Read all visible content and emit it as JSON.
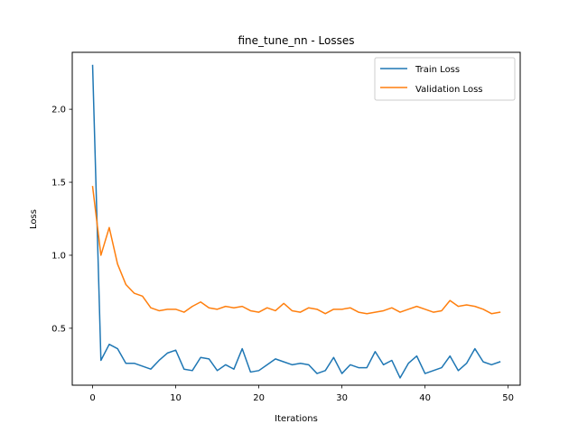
{
  "chart_data": {
    "type": "line",
    "title": "fine_tune_nn - Losses",
    "xlabel": "Iterations",
    "ylabel": "Loss",
    "xlim": [
      -2.45,
      51.45
    ],
    "ylim": [
      0.11,
      2.39
    ],
    "xticks": [
      0,
      10,
      20,
      30,
      40,
      50
    ],
    "yticks": [
      0.5,
      1.0,
      1.5,
      2.0
    ],
    "xtick_labels": [
      "0",
      "10",
      "20",
      "30",
      "40",
      "50"
    ],
    "ytick_labels": [
      "0.5",
      "1.0",
      "1.5",
      "2.0"
    ],
    "grid": false,
    "legend_position": "top-right",
    "x": [
      0,
      1,
      2,
      3,
      4,
      5,
      6,
      7,
      8,
      9,
      10,
      11,
      12,
      13,
      14,
      15,
      16,
      17,
      18,
      19,
      20,
      21,
      22,
      23,
      24,
      25,
      26,
      27,
      28,
      29,
      30,
      31,
      32,
      33,
      34,
      35,
      36,
      37,
      38,
      39,
      40,
      41,
      42,
      43,
      44,
      45,
      46,
      47,
      48,
      49
    ],
    "series": [
      {
        "name": "Train Loss",
        "color": "#1f77b4",
        "values": [
          2.3,
          0.28,
          0.39,
          0.36,
          0.26,
          0.26,
          0.24,
          0.22,
          0.28,
          0.33,
          0.35,
          0.22,
          0.21,
          0.3,
          0.29,
          0.21,
          0.25,
          0.22,
          0.36,
          0.2,
          0.21,
          0.25,
          0.29,
          0.27,
          0.25,
          0.26,
          0.25,
          0.19,
          0.21,
          0.3,
          0.19,
          0.25,
          0.23,
          0.23,
          0.34,
          0.25,
          0.28,
          0.16,
          0.26,
          0.31,
          0.19,
          0.21,
          0.23,
          0.31,
          0.21,
          0.26,
          0.36,
          0.27,
          0.25,
          0.27
        ]
      },
      {
        "name": "Validation Loss",
        "color": "#ff7f0e",
        "values": [
          1.47,
          1.0,
          1.19,
          0.94,
          0.8,
          0.74,
          0.72,
          0.64,
          0.62,
          0.63,
          0.63,
          0.61,
          0.65,
          0.68,
          0.64,
          0.63,
          0.65,
          0.64,
          0.65,
          0.62,
          0.61,
          0.64,
          0.62,
          0.67,
          0.62,
          0.61,
          0.64,
          0.63,
          0.6,
          0.63,
          0.63,
          0.64,
          0.61,
          0.6,
          0.61,
          0.62,
          0.64,
          0.61,
          0.63,
          0.65,
          0.63,
          0.61,
          0.62,
          0.69,
          0.65,
          0.66,
          0.65,
          0.63,
          0.6,
          0.61
        ]
      }
    ]
  }
}
